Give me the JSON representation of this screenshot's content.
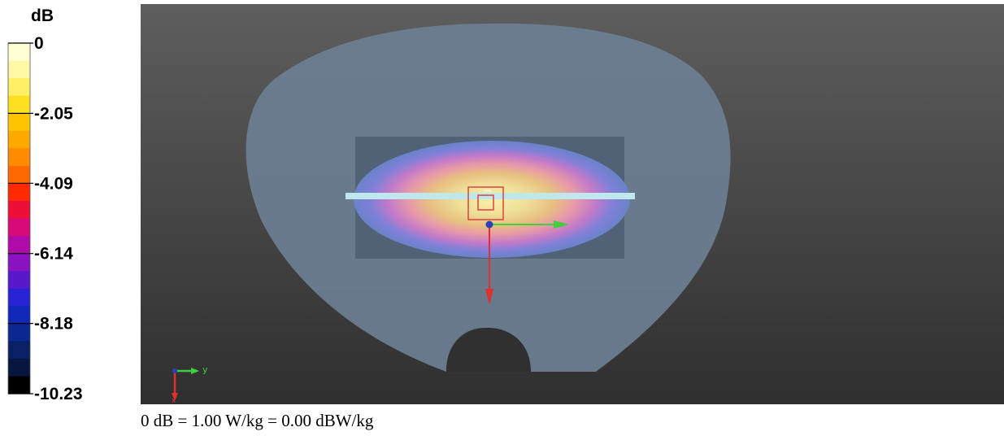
{
  "chart_data": {
    "type": "heatmap",
    "colorbar": {
      "unit": "dB",
      "range": [
        -10.23,
        0
      ],
      "tick_labels": [
        "0",
        "-2.05",
        "-4.09",
        "-6.14",
        "-8.18",
        "-10.23"
      ],
      "tick_values": [
        0,
        -2.05,
        -4.09,
        -6.14,
        -8.18,
        -10.23
      ],
      "colors_top_to_bottom": [
        "#ffffd6",
        "#fff8a6",
        "#fff066",
        "#ffe020",
        "#ffc400",
        "#ffa800",
        "#ff8c00",
        "#ff6a00",
        "#ff2a00",
        "#ee0f38",
        "#d60a78",
        "#b00aa8",
        "#8a12c0",
        "#5a18cc",
        "#2824d6",
        "#1028b8",
        "#0a2890",
        "#082064",
        "#061640",
        "#000000"
      ]
    },
    "axes_indicator": {
      "y_label": "y",
      "x_label": "x"
    },
    "caption": "0 dB = 1.00 W/kg = 0.00 dBW/kg"
  }
}
